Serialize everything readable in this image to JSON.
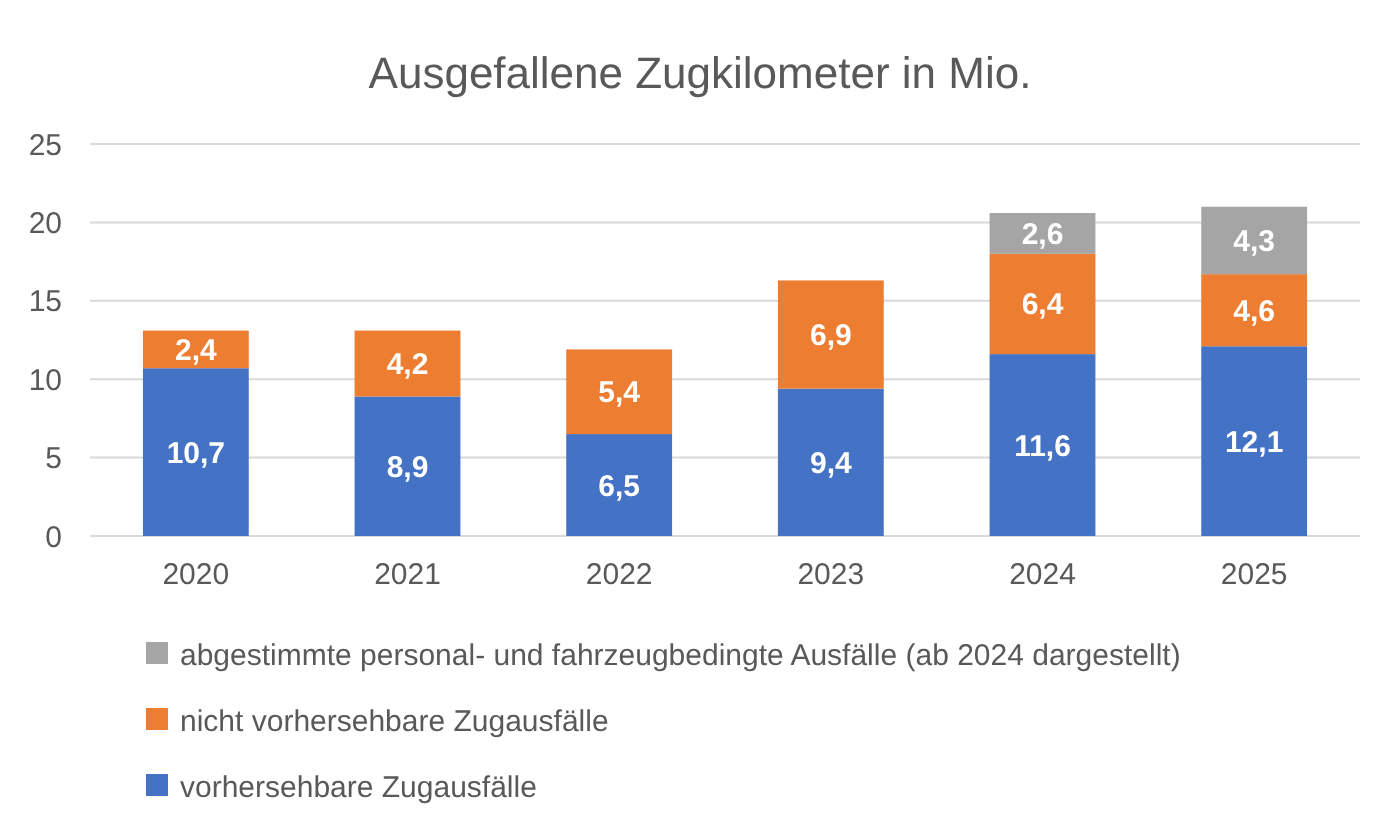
{
  "chart_data": {
    "type": "bar",
    "title": "Ausgefallene Zugkilometer in Mio.",
    "stacked": true,
    "categories": [
      "2020",
      "2021",
      "2022",
      "2023",
      "2024",
      "2025"
    ],
    "series": [
      {
        "name": "vorhersehbare Zugausfälle",
        "color": "#4472c4",
        "values": [
          10.7,
          8.9,
          6.5,
          9.4,
          11.6,
          12.1
        ],
        "value_labels": [
          "10,7",
          "8,9",
          "6,5",
          "9,4",
          "11,6",
          "12,1"
        ]
      },
      {
        "name": "nicht vorhersehbare Zugausfälle",
        "color": "#ed7d31",
        "values": [
          2.4,
          4.2,
          5.4,
          6.9,
          6.4,
          4.6
        ],
        "value_labels": [
          "2,4",
          "4,2",
          "5,4",
          "6,9",
          "6,4",
          "4,6"
        ]
      },
      {
        "name": "abgestimmte personal- und fahrzeugbedingte Ausfälle (ab 2024 dargestellt)",
        "color": "#a5a5a5",
        "values": [
          null,
          null,
          null,
          null,
          2.6,
          4.3
        ],
        "value_labels": [
          null,
          null,
          null,
          null,
          "2,6",
          "4,3"
        ]
      }
    ],
    "ylim": [
      0,
      25
    ],
    "yticks": [
      0,
      5,
      10,
      15,
      20,
      25
    ],
    "grid": "y",
    "legend": "bottom"
  }
}
